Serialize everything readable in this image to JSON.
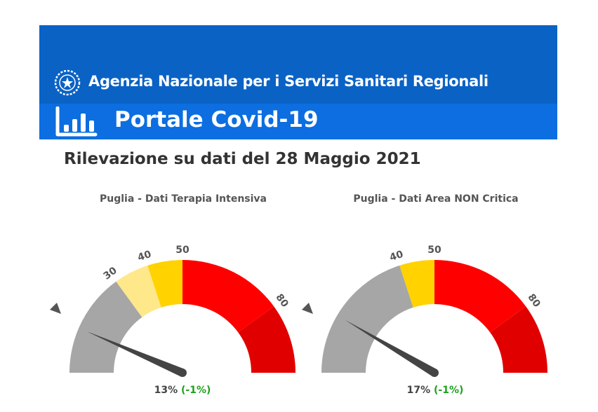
{
  "header": {
    "agency_name": "Agenzia Nazionale per i Servizi Sanitari Regionali",
    "portal_title": "Portale Covid-19",
    "emblem_icon": "italian-republic-emblem-icon",
    "portal_icon": "bar-chart-icon",
    "colors": {
      "banner_top": "#0a62c5",
      "banner_bottom": "#0c6ee0"
    }
  },
  "headline": "Rilevazione su dati del 28 Maggio 2021",
  "chart_data": [
    {
      "type": "gauge",
      "title": "Puglia - Dati Terapia Intensiva",
      "range": [
        0,
        100
      ],
      "value": 13,
      "value_label": "13%",
      "change_label": "(-1%)",
      "tick_labels": [
        "30",
        "40",
        "50",
        "80"
      ],
      "bands": [
        {
          "from": 0,
          "to": 30,
          "color": "#a6a6a6"
        },
        {
          "from": 30,
          "to": 40,
          "color": "#ffe88a"
        },
        {
          "from": 40,
          "to": 50,
          "color": "#ffd200"
        },
        {
          "from": 50,
          "to": 80,
          "color": "#ff0000"
        },
        {
          "from": 80,
          "to": 100,
          "color": "#e00000"
        }
      ]
    },
    {
      "type": "gauge",
      "title": "Puglia - Dati Area NON Critica",
      "range": [
        0,
        100
      ],
      "value": 17,
      "value_label": "17%",
      "change_label": "(-1%)",
      "tick_labels": [
        "40",
        "50",
        "80"
      ],
      "bands": [
        {
          "from": 0,
          "to": 40,
          "color": "#a6a6a6"
        },
        {
          "from": 40,
          "to": 50,
          "color": "#ffd200"
        },
        {
          "from": 50,
          "to": 80,
          "color": "#ff0000"
        },
        {
          "from": 80,
          "to": 100,
          "color": "#e00000"
        }
      ]
    }
  ]
}
